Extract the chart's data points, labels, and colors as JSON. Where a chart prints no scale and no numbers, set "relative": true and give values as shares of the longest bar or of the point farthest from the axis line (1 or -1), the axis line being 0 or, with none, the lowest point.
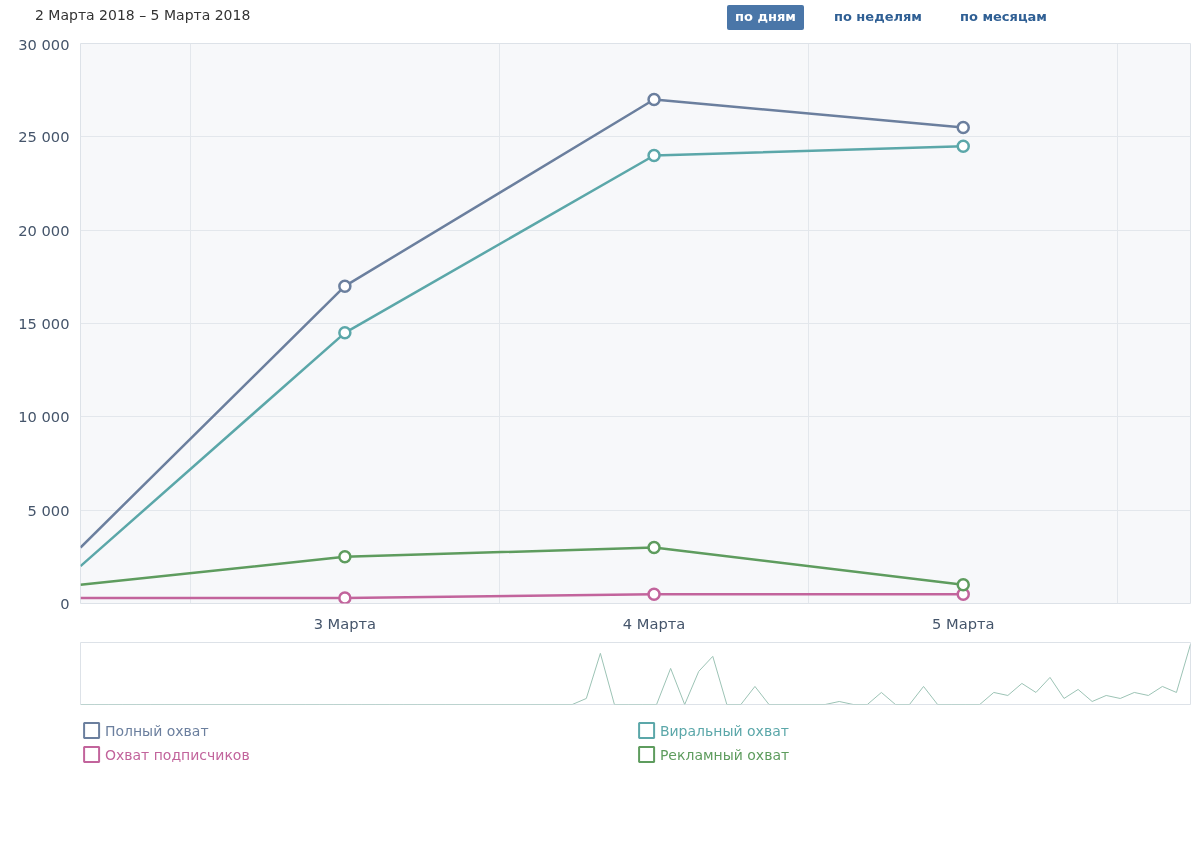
{
  "chart_data": [
    {
      "type": "line",
      "title": "2 Марта 2018 – 5 Марта 2018",
      "annotations": [
        "по дням",
        "по неделям",
        "по месяцам"
      ],
      "x": [
        2.145,
        3,
        4,
        5
      ],
      "series": [
        {
          "name": "Полный охват",
          "color": "#6b7f9e",
          "values": [
            3000,
            17000,
            27000,
            25500
          ]
        },
        {
          "name": "Охват подписчиков",
          "color": "#c2649c",
          "values": [
            300,
            300,
            500,
            500
          ]
        },
        {
          "name": "Виральный охват",
          "color": "#5ba7a9",
          "values": [
            2000,
            14500,
            24000,
            24500
          ]
        },
        {
          "name": "Рекламный охват",
          "color": "#5e9c5e",
          "values": [
            1000,
            2500,
            3000,
            1000
          ]
        }
      ],
      "xlim": [
        2.145,
        5.735
      ],
      "xticks": [
        {
          "value": 2.5,
          "label": null
        },
        {
          "value": 3,
          "label": "3 Марта"
        },
        {
          "value": 3.5,
          "label": null
        },
        {
          "value": 4,
          "label": "4 Марта"
        },
        {
          "value": 4.5,
          "label": null
        },
        {
          "value": 5,
          "label": "5 Марта"
        },
        {
          "value": 5.5,
          "label": null
        }
      ],
      "ylim": [
        0,
        30000
      ],
      "yticks": [
        {
          "value": 0,
          "label": "0"
        },
        {
          "value": 5000,
          "label": "5 000"
        },
        {
          "value": 10000,
          "label": "10 000"
        },
        {
          "value": 15000,
          "label": "15 000"
        },
        {
          "value": 20000,
          "label": "20 000"
        },
        {
          "value": 25000,
          "label": "25 000"
        },
        {
          "value": 30000,
          "label": "30 000"
        }
      ],
      "grid": true,
      "legend": "bottom",
      "marker": "circle",
      "line_style": "solid"
    },
    {
      "type": "line",
      "relative": true,
      "categories": [
        null,
        null,
        null,
        null,
        null,
        null,
        null,
        null,
        null,
        null,
        null,
        null,
        null,
        null,
        null,
        null,
        null,
        null,
        null,
        null,
        null,
        null,
        null,
        null,
        null,
        null,
        null,
        null,
        null,
        null,
        null,
        null,
        null,
        null,
        null,
        null,
        null,
        null,
        null,
        null,
        null,
        null,
        null,
        null,
        null,
        null,
        null,
        null,
        null,
        null,
        null,
        null,
        null,
        null,
        null,
        null,
        null,
        null,
        null,
        null,
        null,
        null,
        null,
        null,
        null,
        null,
        null,
        null,
        null,
        null,
        null,
        null,
        null,
        null,
        null,
        null,
        null,
        null,
        null,
        null
      ],
      "series": [
        {
          "color": "#9cc3b5",
          "values": [
            0,
            0,
            0,
            0,
            0,
            0,
            0,
            0,
            0,
            0,
            0,
            0,
            0,
            0,
            0,
            0,
            0,
            0,
            0,
            0,
            0,
            0,
            0,
            0,
            0,
            0,
            0,
            0,
            0,
            0,
            0,
            0,
            0,
            0,
            0,
            0,
            0.1,
            0.85,
            0,
            0,
            0,
            0,
            0.6,
            0,
            0.55,
            0.8,
            0,
            0,
            0.3,
            0,
            0,
            0,
            0,
            0,
            0.05,
            0,
            0,
            0.2,
            0,
            0,
            0.3,
            0,
            0,
            0,
            0,
            0.2,
            0.15,
            0.35,
            0.2,
            0.45,
            0.1,
            0.25,
            0.05,
            0.15,
            0.1,
            0.2,
            0.15,
            0.3,
            0.2,
            1
          ]
        }
      ]
    }
  ]
}
